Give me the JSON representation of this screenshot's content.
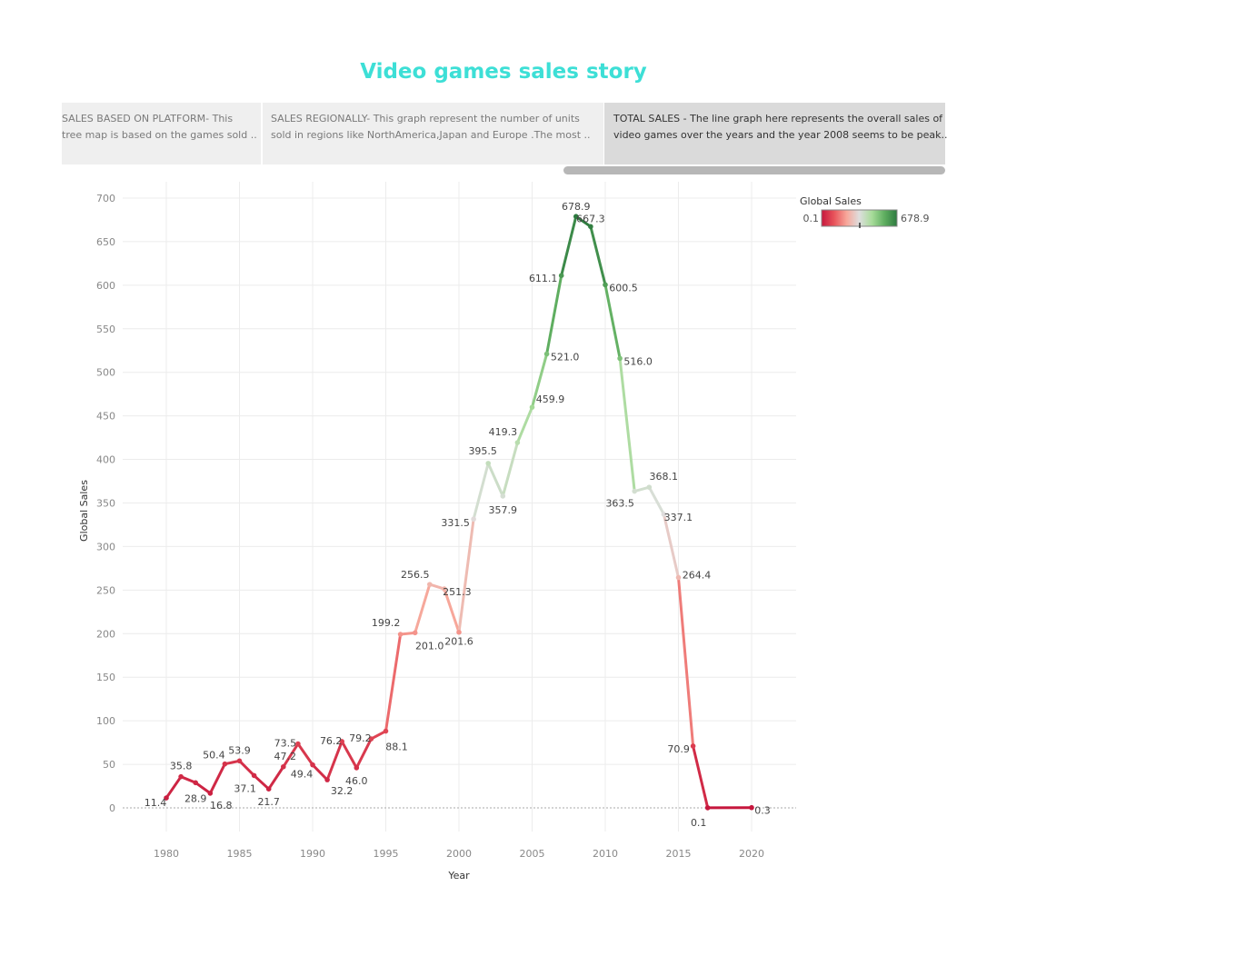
{
  "story": {
    "title": "Video games sales story",
    "points": [
      {
        "line1": "SALES BASED ON PLATFORM-  This",
        "line2": "tree map is based on the games sold .."
      },
      {
        "line1": "SALES REGIONALLY- This graph represent the number of units",
        "line2": "sold in regions  like NorthAmerica,Japan and Europe .The most .."
      },
      {
        "line1": "TOTAL SALES - The line graph here represents the overall sales of",
        "line2": "video games over the years and the year 2008 seems to be peak.."
      }
    ],
    "active_point": 2
  },
  "legend": {
    "title": "Global Sales",
    "min_label": "0.1",
    "max_label": "678.9",
    "colors": [
      "#c6173d",
      "#e8545b",
      "#f7a79a",
      "#dedede",
      "#a8dc9a",
      "#5fae60",
      "#2d7a3f"
    ]
  },
  "chart_data": {
    "type": "line",
    "title": "",
    "xlabel": "Year",
    "ylabel": "Global Sales",
    "xlim": [
      1977,
      2023
    ],
    "ylim": [
      0,
      700
    ],
    "x_ticks": [
      "1980",
      "1985",
      "1990",
      "1995",
      "2000",
      "2005",
      "2010",
      "2015",
      "2020"
    ],
    "y_ticks": [
      "0",
      "50",
      "100",
      "150",
      "200",
      "250",
      "300",
      "350",
      "400",
      "450",
      "500",
      "550",
      "600",
      "650",
      "700"
    ],
    "grid": true,
    "legend_position": "top-right",
    "series": [
      {
        "points": [
          {
            "x": 1980,
            "y": 11.4,
            "label": "11.4"
          },
          {
            "x": 1981,
            "y": 35.8,
            "label": "35.8"
          },
          {
            "x": 1982,
            "y": 28.9,
            "label": "28.9"
          },
          {
            "x": 1983,
            "y": 16.8,
            "label": "16.8"
          },
          {
            "x": 1984,
            "y": 50.4,
            "label": "50.4"
          },
          {
            "x": 1985,
            "y": 53.9,
            "label": "53.9"
          },
          {
            "x": 1986,
            "y": 37.1,
            "label": "37.1"
          },
          {
            "x": 1987,
            "y": 21.7,
            "label": "21.7"
          },
          {
            "x": 1988,
            "y": 47.2,
            "label": "47.2"
          },
          {
            "x": 1989,
            "y": 73.5,
            "label": "73.5"
          },
          {
            "x": 1990,
            "y": 49.4,
            "label": "49.4"
          },
          {
            "x": 1991,
            "y": 32.2,
            "label": "32.2"
          },
          {
            "x": 1992,
            "y": 76.2,
            "label": "76.2"
          },
          {
            "x": 1993,
            "y": 46.0,
            "label": "46.0"
          },
          {
            "x": 1994,
            "y": 79.2,
            "label": "79.2"
          },
          {
            "x": 1995,
            "y": 88.1,
            "label": "88.1"
          },
          {
            "x": 1996,
            "y": 199.2,
            "label": "199.2"
          },
          {
            "x": 1997,
            "y": 201.0,
            "label": "201.0"
          },
          {
            "x": 1998,
            "y": 256.5,
            "label": "256.5"
          },
          {
            "x": 1999,
            "y": 251.3,
            "label": "251.3"
          },
          {
            "x": 2000,
            "y": 201.6,
            "label": "201.6"
          },
          {
            "x": 2001,
            "y": 331.5,
            "label": "331.5"
          },
          {
            "x": 2002,
            "y": 395.5,
            "label": "395.5"
          },
          {
            "x": 2003,
            "y": 357.9,
            "label": "357.9"
          },
          {
            "x": 2004,
            "y": 419.3,
            "label": "419.3"
          },
          {
            "x": 2005,
            "y": 459.9,
            "label": "459.9"
          },
          {
            "x": 2006,
            "y": 521.0,
            "label": "521.0"
          },
          {
            "x": 2007,
            "y": 611.1,
            "label": "611.1"
          },
          {
            "x": 2008,
            "y": 678.9,
            "label": "678.9"
          },
          {
            "x": 2009,
            "y": 667.3,
            "label": "667.3"
          },
          {
            "x": 2010,
            "y": 600.5,
            "label": "600.5"
          },
          {
            "x": 2011,
            "y": 516.0,
            "label": "516.0"
          },
          {
            "x": 2012,
            "y": 363.5,
            "label": "363.5"
          },
          {
            "x": 2013,
            "y": 368.1,
            "label": "368.1"
          },
          {
            "x": 2014,
            "y": 337.1,
            "label": "337.1"
          },
          {
            "x": 2015,
            "y": 264.4,
            "label": "264.4"
          },
          {
            "x": 2016,
            "y": 70.9,
            "label": "70.9"
          },
          {
            "x": 2017,
            "y": 0.1,
            "label": "0.1"
          },
          {
            "x": 2020,
            "y": 0.3,
            "label": "0.3"
          }
        ]
      }
    ]
  }
}
